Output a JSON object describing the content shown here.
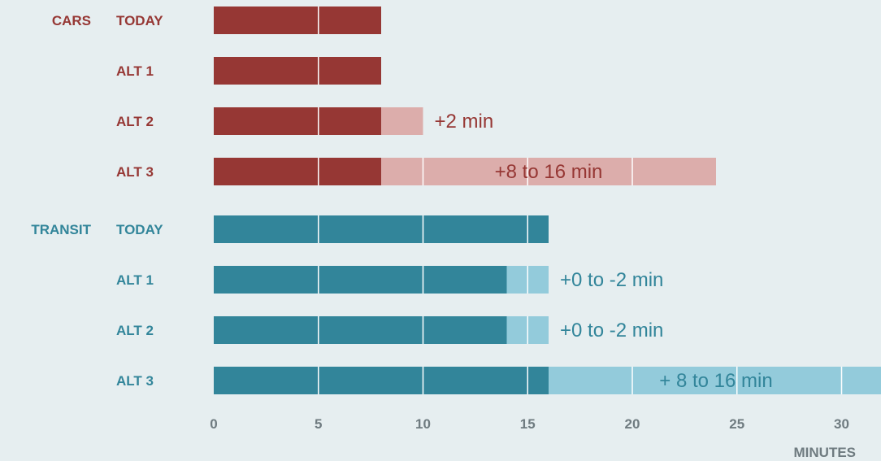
{
  "colors": {
    "background": "#e6eef0",
    "cars_base": "#963734",
    "cars_extra": "#dcadab",
    "transit_base": "#32859a",
    "transit_extra": "#93cbdb",
    "divider": "#ffffff",
    "axis_text": "#6f7b80"
  },
  "chart_data": {
    "type": "bar",
    "orientation": "horizontal",
    "stacked": true,
    "xlabel": "MINUTES",
    "xlim": [
      0,
      32
    ],
    "x_ticks": [
      0,
      5,
      10,
      15,
      20,
      25,
      30
    ],
    "grid": false,
    "groups": [
      {
        "name": "CARS",
        "rows": [
          {
            "label": "TODAY",
            "base": 8,
            "extra": 0,
            "annotation": ""
          },
          {
            "label": "ALT 1",
            "base": 8,
            "extra": 0,
            "annotation": ""
          },
          {
            "label": "ALT 2",
            "base": 8,
            "extra": 2,
            "annotation": "+2 min"
          },
          {
            "label": "ALT 3",
            "base": 8,
            "extra": 16,
            "annotation": "+8 to 16 min"
          }
        ]
      },
      {
        "name": "TRANSIT",
        "rows": [
          {
            "label": "TODAY",
            "base": 16,
            "extra": 0,
            "annotation": ""
          },
          {
            "label": "ALT 1",
            "base": 14,
            "extra": 2,
            "annotation": "+0 to -2 min"
          },
          {
            "label": "ALT 2",
            "base": 14,
            "extra": 2,
            "annotation": "+0 to -2 min"
          },
          {
            "label": "ALT 3",
            "base": 16,
            "extra": 16,
            "annotation": "+ 8 to 16 min"
          }
        ]
      }
    ]
  }
}
